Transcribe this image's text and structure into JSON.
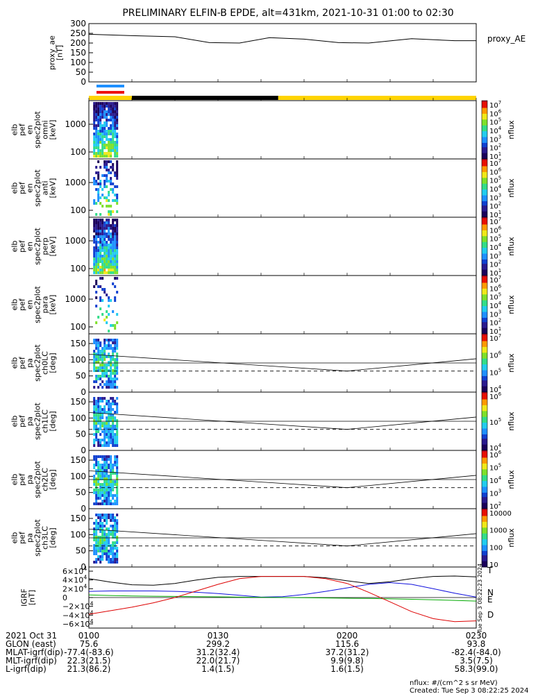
{
  "title": "PRELIMINARY ELFIN-B EPDE, alt=431km, 2021-10-31 01:00 to 02:30",
  "colors": {
    "blue_bar": "#1e90ff",
    "red_bar": "#ee1111",
    "yellow_bar": "#ffd400",
    "black_bar": "#000000",
    "grf_N": "#1010dd",
    "grf_E": "#00aa00",
    "grf_D": "#dd0000",
    "grf_T": "#000000"
  },
  "chart_data": [
    {
      "type": "line",
      "panel": "proxy_ae",
      "ylabel": "proxy_ae\n[nT]",
      "legend": "proxy_AE",
      "ylim": [
        0,
        300
      ],
      "yticks": [
        "300",
        "250",
        "200",
        "150",
        "100",
        "50",
        "0"
      ],
      "x_minutes": [
        0,
        10,
        20,
        28,
        35,
        42,
        50,
        58,
        65,
        75,
        85,
        90
      ],
      "values": [
        245,
        238,
        232,
        202,
        200,
        228,
        220,
        202,
        200,
        222,
        212,
        212
      ]
    },
    {
      "type": "heatmap",
      "panel": "spec2plot omni",
      "ylabel": [
        "elb",
        "pef",
        "en",
        "spec2plot",
        "omni",
        "[keV]"
      ],
      "yticks": [
        "1000",
        "100"
      ],
      "colorbar": {
        "label": "nflux",
        "ticks": [
          "10^7",
          "10^6",
          "10^5",
          "10^4",
          "10^3",
          "10^2",
          "10^1"
        ]
      },
      "data_interval_minutes": [
        1,
        6.5
      ]
    },
    {
      "type": "heatmap",
      "panel": "spec2plot anti",
      "ylabel": [
        "elb",
        "pef",
        "en",
        "spec2plot",
        "anti",
        "[keV]"
      ],
      "yticks": [
        "1000",
        "100"
      ],
      "colorbar": {
        "label": "nflux",
        "ticks": [
          "10^7",
          "10^6",
          "10^5",
          "10^4",
          "10^3",
          "10^2",
          "10^1"
        ]
      },
      "data_interval_minutes": [
        1,
        6.5
      ]
    },
    {
      "type": "heatmap",
      "panel": "spec2plot perp",
      "ylabel": [
        "elb",
        "pef",
        "en",
        "spec2plot",
        "perp",
        "[keV]"
      ],
      "yticks": [
        "1000",
        "100"
      ],
      "colorbar": {
        "label": "nflux",
        "ticks": [
          "10^7",
          "10^6",
          "10^5",
          "10^4",
          "10^3",
          "10^2",
          "10^1"
        ]
      },
      "data_interval_minutes": [
        1,
        6.5
      ]
    },
    {
      "type": "heatmap",
      "panel": "spec2plot para",
      "ylabel": [
        "elb",
        "pef",
        "en",
        "spec2plot",
        "para",
        "[keV]"
      ],
      "yticks": [
        "1000",
        "100"
      ],
      "colorbar": {
        "label": "nflux",
        "ticks": [
          "10^7",
          "10^6",
          "10^5",
          "10^4",
          "10^3",
          "10^2",
          "10^1"
        ]
      },
      "data_interval_minutes": [
        1,
        6.5
      ]
    },
    {
      "type": "heatmap",
      "panel": "spec2plot ch0LC",
      "ylabel": [
        "elb",
        "pef",
        "pa",
        "spec2plot",
        "ch0LC",
        "[deg]"
      ],
      "yticks": [
        "150",
        "100",
        "50",
        "0"
      ],
      "colorbar": {
        "label": "nflux",
        "ticks": [
          "10^7",
          "10^6",
          "10^5",
          "10^4"
        ]
      },
      "data_interval_minutes": [
        1,
        6.5
      ]
    },
    {
      "type": "heatmap",
      "panel": "spec2plot ch1LC",
      "ylabel": [
        "elb",
        "pef",
        "pa",
        "spec2plot",
        "ch1LC",
        "[deg]"
      ],
      "yticks": [
        "150",
        "100",
        "50",
        "0"
      ],
      "colorbar": {
        "label": "nflux",
        "ticks": [
          "10^6",
          "10^5",
          "10^4"
        ]
      },
      "data_interval_minutes": [
        1,
        6.5
      ]
    },
    {
      "type": "heatmap",
      "panel": "spec2plot ch2LC",
      "ylabel": [
        "elb",
        "pef",
        "pa",
        "spec2plot",
        "ch2LC",
        "[deg]"
      ],
      "yticks": [
        "150",
        "100",
        "50",
        "0"
      ],
      "colorbar": {
        "label": "nflux",
        "ticks": [
          "10^6",
          "10^5",
          "10^4",
          "10^3",
          "10^2"
        ]
      },
      "data_interval_minutes": [
        1,
        6.5
      ]
    },
    {
      "type": "heatmap",
      "panel": "spec2plot ch3LC",
      "ylabel": [
        "elb",
        "pef",
        "pa",
        "spec2plot",
        "ch3LC",
        "[deg]"
      ],
      "yticks": [
        "150",
        "100",
        "50",
        "0"
      ],
      "colorbar": {
        "label": "nflux",
        "ticks": [
          "10000",
          "1000",
          "100",
          "10"
        ]
      },
      "data_interval_minutes": [
        1,
        6.5
      ]
    },
    {
      "type": "line",
      "panel": "IGRF",
      "ylabel": "IGRF\n[nT]",
      "ylim": [
        -60000,
        60000
      ],
      "yticks": [
        "6×10^4",
        "4×10^4",
        "2×10^4",
        "0",
        "−2×10^4",
        "−4×10^4",
        "−6×10^4"
      ],
      "legend": [
        "T",
        "N",
        "E",
        "D"
      ],
      "x_minutes": [
        0,
        5,
        10,
        15,
        20,
        25,
        30,
        35,
        40,
        45,
        50,
        55,
        60,
        65,
        70,
        75,
        80,
        85,
        90
      ],
      "series": [
        {
          "name": "T",
          "values": [
            43000,
            35000,
            29000,
            28000,
            32000,
            40000,
            46000,
            48000,
            48000,
            48000,
            48000,
            45000,
            38000,
            32000,
            36000,
            43000,
            48000,
            49000,
            47000
          ]
        },
        {
          "name": "N",
          "values": [
            14000,
            15000,
            15000,
            15000,
            14000,
            12000,
            9000,
            5000,
            1000,
            2000,
            7000,
            14000,
            22000,
            30000,
            34000,
            30000,
            20000,
            10000,
            1000
          ]
        },
        {
          "name": "E",
          "values": [
            6000,
            4500,
            3500,
            3000,
            2500,
            2000,
            1500,
            1000,
            500,
            0,
            -500,
            -1000,
            -1500,
            -2000,
            -3000,
            -4000,
            -5000,
            -6500,
            -8000
          ]
        },
        {
          "name": "D",
          "values": [
            -38000,
            -30000,
            -22000,
            -12000,
            0,
            15000,
            30000,
            43000,
            48000,
            48000,
            48000,
            43000,
            32000,
            12000,
            -10000,
            -32000,
            -48000,
            -55000,
            -53000
          ]
        }
      ]
    }
  ],
  "pitch_angle_lines": {
    "ch_lc_x_minutes": [
      0,
      60,
      90
    ],
    "loss_cone_solid": [
      117,
      65,
      103
    ],
    "loss_cone_dashed": [
      65
    ],
    "ref_line": [
      90
    ]
  },
  "xaxis": {
    "ticks": [
      "0100",
      "0130",
      "0200",
      "0230"
    ],
    "date_label": "2021 Oct 31",
    "rows": [
      {
        "label": "GLON (east)",
        "values": [
          "75.6",
          "299.2",
          "115.6",
          "93.8"
        ]
      },
      {
        "label": "MLAT-igrf(dip)",
        "values": [
          "-77.4(-83.6)",
          "31.2(32.4)",
          "37.2(31.2)",
          "-82.4(-84.0)"
        ]
      },
      {
        "label": "MLT-igrf(dip)",
        "values": [
          "22.3(21.5)",
          "22.0(21.7)",
          "9.9(9.8)",
          "3.5(7.5)"
        ]
      },
      {
        "label": "L-igrf(dip)",
        "values": [
          "21.3(86.2)",
          "1.4(1.5)",
          "1.6(1.5)",
          "58.3(99.0)"
        ]
      }
    ]
  },
  "footer": {
    "units": "nflux: #/(cm^2 s sr MeV)",
    "created": "Created: Tue Sep  3 08:22:25 2024"
  },
  "side_stamp": "Tue Sep  3 08:22:23 2024"
}
